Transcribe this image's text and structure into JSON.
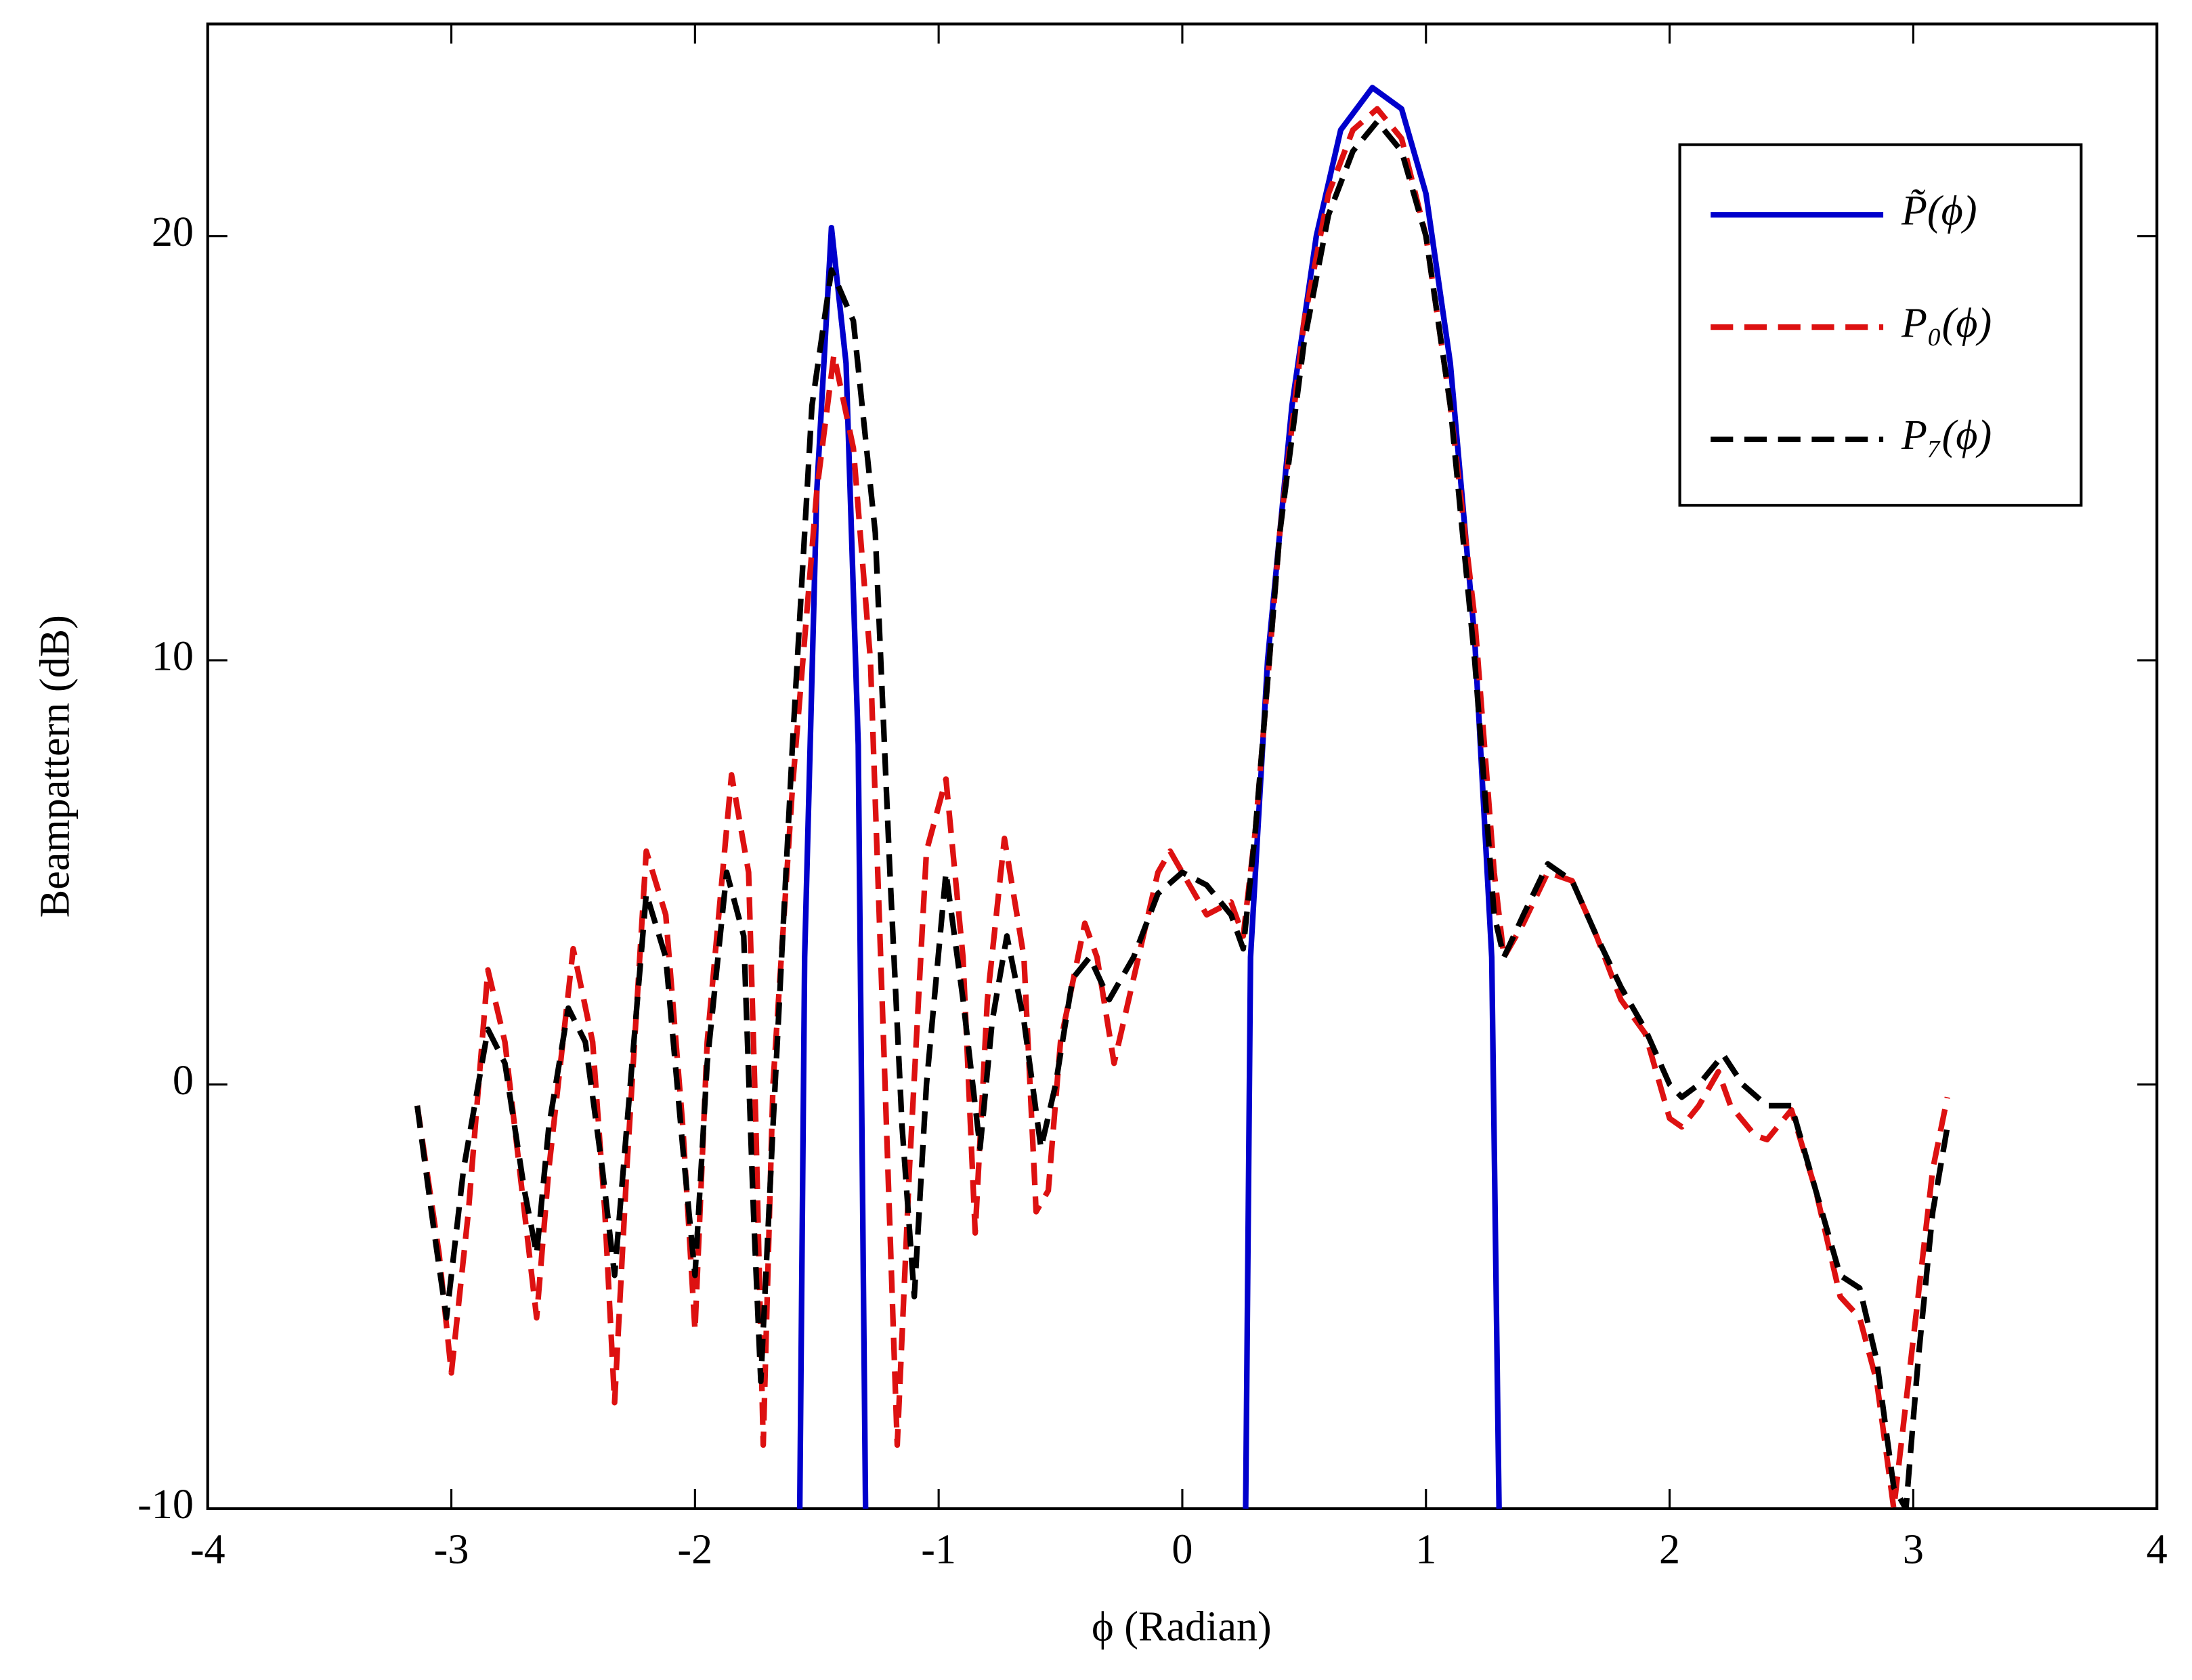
{
  "chart_data": {
    "type": "line",
    "xlabel": "ϕ (Radian)",
    "ylabel": "Beampattern (dB)",
    "xlim": [
      -4,
      4
    ],
    "xticks": [
      -4,
      -3,
      -2,
      -1,
      0,
      1,
      2,
      3,
      4
    ],
    "ylim": [
      -10,
      25
    ],
    "yticks": [
      -10,
      0,
      10,
      20
    ],
    "legend": "upper-right",
    "series": [
      {
        "name": "P̃(ϕ)",
        "color": "#0000cc",
        "dash": false,
        "x": [
          -1.57,
          -1.55,
          -1.5,
          -1.44,
          -1.38,
          -1.33,
          -1.3,
          null,
          0.26,
          0.28,
          0.35,
          0.45,
          0.55,
          0.65,
          0.78,
          0.9,
          1.0,
          1.1,
          1.2,
          1.27,
          1.3
        ],
        "values": [
          -10,
          3,
          14,
          20.2,
          17,
          8,
          -10,
          null,
          -10,
          3,
          10,
          16,
          20,
          22.5,
          23.5,
          23,
          21,
          17,
          10.5,
          3,
          -10
        ]
      },
      {
        "name": "P₀(ϕ)",
        "color": "#dd1111",
        "dash": true,
        "x": [
          -3.14,
          -3.05,
          -3.0,
          -2.93,
          -2.85,
          -2.78,
          -2.7,
          -2.65,
          -2.6,
          -2.5,
          -2.42,
          -2.37,
          -2.33,
          -2.28,
          -2.2,
          -2.12,
          -2.05,
          -2.0,
          -1.95,
          -1.85,
          -1.78,
          -1.75,
          -1.72,
          -1.68,
          -1.6,
          -1.5,
          -1.43,
          -1.35,
          -1.28,
          -1.22,
          -1.17,
          -1.12,
          -1.05,
          -0.97,
          -0.9,
          -0.85,
          -0.8,
          -0.73,
          -0.65,
          -0.6,
          -0.55,
          -0.5,
          -0.4,
          -0.35,
          -0.28,
          -0.2,
          -0.1,
          -0.05,
          0.05,
          0.1,
          0.2,
          0.25,
          0.3,
          0.4,
          0.5,
          0.6,
          0.7,
          0.8,
          0.9,
          1.0,
          1.1,
          1.2,
          1.28,
          1.32,
          1.4,
          1.5,
          1.6,
          1.7,
          1.8,
          1.9,
          2.0,
          2.05,
          2.12,
          2.2,
          2.25,
          2.35,
          2.4,
          2.5,
          2.6,
          2.7,
          2.78,
          2.85,
          2.92,
          3.0,
          3.08,
          3.14
        ],
        "values": [
          -0.5,
          -4,
          -6.8,
          -3,
          2.7,
          1,
          -3,
          -5.5,
          -2,
          3.2,
          1,
          -3,
          -7.5,
          -2,
          5.5,
          4,
          -1,
          -5.8,
          1,
          7.3,
          5,
          -1,
          -8.5,
          0,
          7,
          14,
          17.2,
          15,
          10,
          0,
          -8.5,
          -2,
          5.5,
          7.2,
          3,
          -3.5,
          2,
          5.8,
          3,
          -3,
          -2.5,
          1,
          3.8,
          3,
          0.5,
          2.5,
          5,
          5.5,
          4.5,
          4,
          4.3,
          3.5,
          6,
          13,
          18,
          21,
          22.5,
          23,
          22.3,
          20,
          16,
          11,
          5,
          3,
          3.8,
          5,
          4.8,
          3.5,
          2,
          1.2,
          -0.8,
          -1,
          -0.5,
          0.3,
          -0.5,
          -1.2,
          -1.3,
          -0.6,
          -2.5,
          -5,
          -5.5,
          -7,
          -10,
          -6,
          -2,
          -0.3
        ]
      },
      {
        "name": "P₇(ϕ)",
        "color": "#000000",
        "dash": true,
        "x": [
          -3.14,
          -3.07,
          -3.02,
          -2.95,
          -2.85,
          -2.78,
          -2.7,
          -2.65,
          -2.6,
          -2.52,
          -2.45,
          -2.38,
          -2.33,
          -2.28,
          -2.2,
          -2.12,
          -2.05,
          -2.0,
          -1.95,
          -1.87,
          -1.8,
          -1.76,
          -1.73,
          -1.68,
          -1.6,
          -1.52,
          -1.44,
          -1.35,
          -1.26,
          -1.2,
          -1.15,
          -1.1,
          -1.05,
          -0.97,
          -0.9,
          -0.83,
          -0.78,
          -0.72,
          -0.65,
          -0.58,
          -0.52,
          -0.45,
          -0.38,
          -0.3,
          -0.2,
          -0.1,
          0.0,
          0.1,
          0.2,
          0.25,
          0.3,
          0.4,
          0.5,
          0.6,
          0.7,
          0.8,
          0.9,
          1.0,
          1.1,
          1.2,
          1.28,
          1.32,
          1.4,
          1.5,
          1.6,
          1.7,
          1.8,
          1.9,
          2.0,
          2.05,
          2.12,
          2.22,
          2.3,
          2.4,
          2.5,
          2.6,
          2.7,
          2.78,
          2.85,
          2.92,
          2.97,
          3.02,
          3.08,
          3.14
        ],
        "values": [
          -0.5,
          -3.5,
          -5.5,
          -2,
          1.3,
          0.5,
          -2.5,
          -4,
          -1,
          1.8,
          1,
          -2,
          -4.5,
          -1,
          4.5,
          3,
          -1.5,
          -4.5,
          0.5,
          5,
          3.5,
          -3,
          -7,
          -1,
          8,
          16,
          19.2,
          18,
          13,
          5,
          -1,
          -5,
          0,
          5,
          2,
          -1.5,
          1.5,
          3.5,
          1.5,
          -1.5,
          0,
          2.5,
          3,
          2,
          3,
          4.5,
          5,
          4.7,
          4,
          3.2,
          6,
          13,
          17.5,
          20.5,
          22,
          22.7,
          22,
          20,
          16,
          10,
          4,
          3,
          4,
          5.2,
          4.8,
          3.5,
          2.3,
          1.3,
          0,
          -0.3,
          0,
          0.7,
          0,
          -0.5,
          -0.5,
          -2.5,
          -4.5,
          -4.8,
          -6.5,
          -9.5,
          -10,
          -6.5,
          -3,
          -1
        ]
      }
    ]
  }
}
